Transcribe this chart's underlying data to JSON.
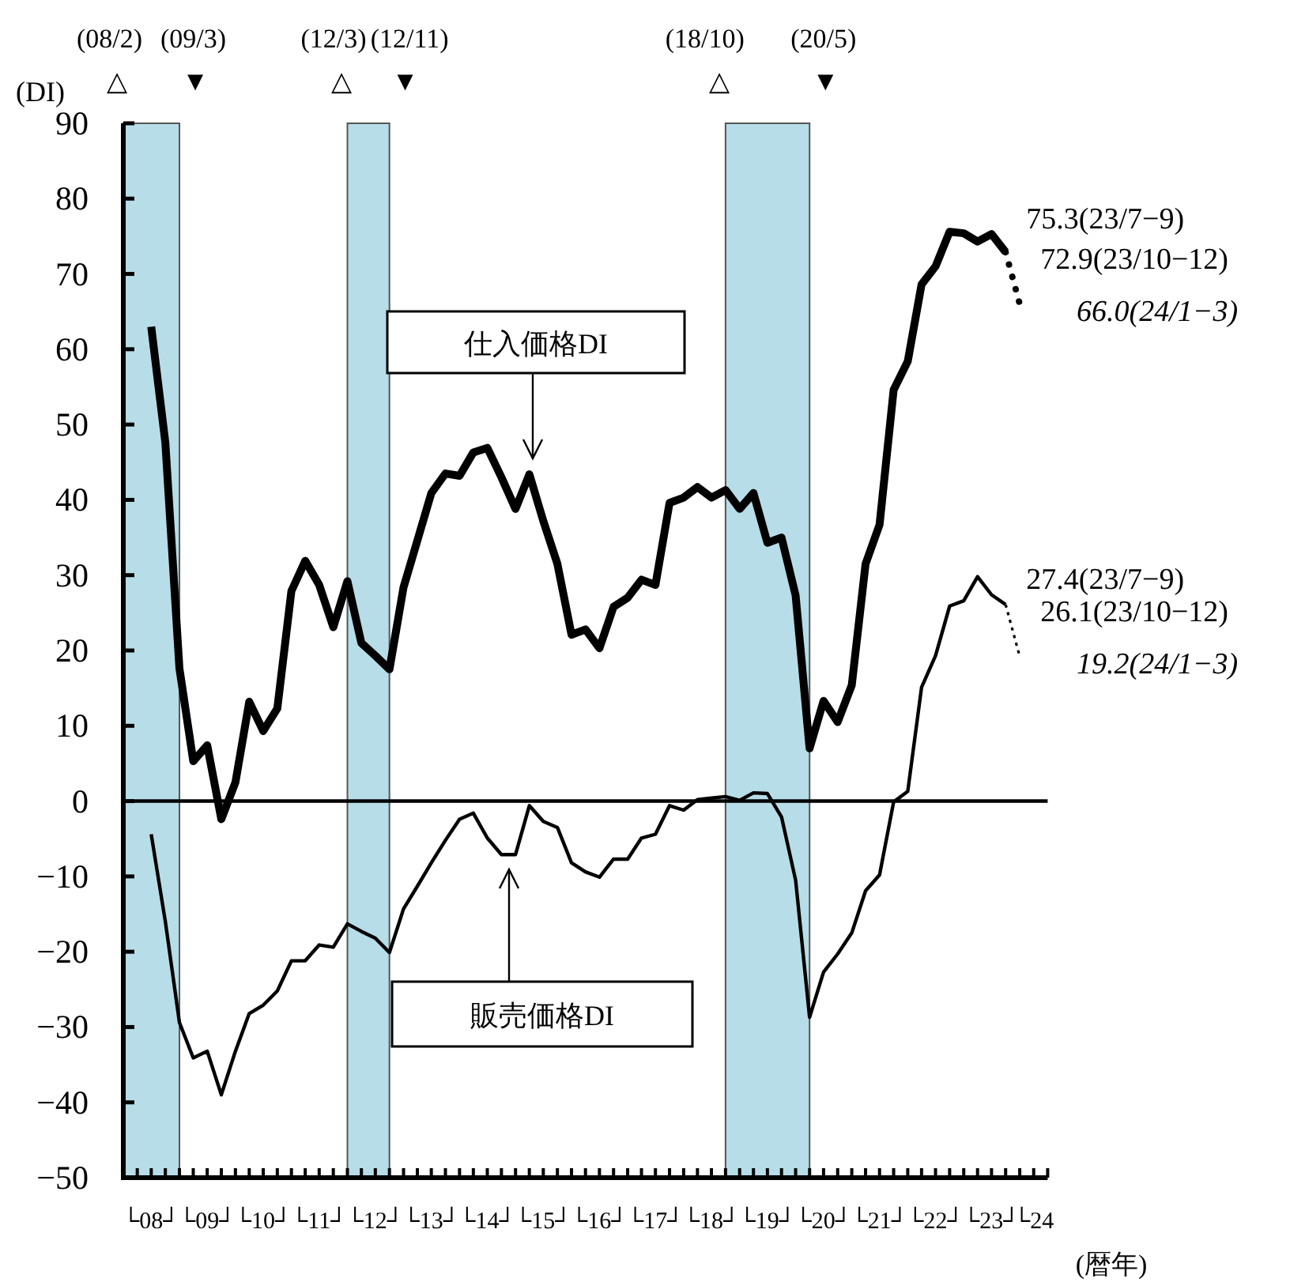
{
  "chart_data": {
    "type": "line",
    "xlabel": "(暦年)",
    "ylabel": "(DI)",
    "xlim": [
      "2008-01",
      "2024-07"
    ],
    "ylim": [
      -50,
      90
    ],
    "yticks": [
      -50,
      -40,
      -30,
      -20,
      -10,
      0,
      10,
      20,
      30,
      40,
      50,
      60,
      70,
      80,
      90
    ],
    "xticks": [
      {
        "value": "2008-01",
        "label": null
      },
      {
        "value": "2008-04",
        "label": null
      },
      {
        "value": "2008-07",
        "label": "└08┘"
      },
      {
        "value": "2008-10",
        "label": null
      },
      {
        "value": "2009-01",
        "label": null
      },
      {
        "value": "2009-04",
        "label": null
      },
      {
        "value": "2009-07",
        "label": "└09┘"
      },
      {
        "value": "2009-10",
        "label": null
      },
      {
        "value": "2010-01",
        "label": null
      },
      {
        "value": "2010-04",
        "label": null
      },
      {
        "value": "2010-07",
        "label": "└10┘"
      },
      {
        "value": "2010-10",
        "label": null
      },
      {
        "value": "2011-01",
        "label": null
      },
      {
        "value": "2011-04",
        "label": null
      },
      {
        "value": "2011-07",
        "label": "└11┘"
      },
      {
        "value": "2011-10",
        "label": null
      },
      {
        "value": "2012-01",
        "label": null
      },
      {
        "value": "2012-04",
        "label": null
      },
      {
        "value": "2012-07",
        "label": "└12┘"
      },
      {
        "value": "2012-10",
        "label": null
      },
      {
        "value": "2013-01",
        "label": null
      },
      {
        "value": "2013-04",
        "label": null
      },
      {
        "value": "2013-07",
        "label": "└13┘"
      },
      {
        "value": "2013-10",
        "label": null
      },
      {
        "value": "2014-01",
        "label": null
      },
      {
        "value": "2014-04",
        "label": null
      },
      {
        "value": "2014-07",
        "label": "└14┘"
      },
      {
        "value": "2014-10",
        "label": null
      },
      {
        "value": "2015-01",
        "label": null
      },
      {
        "value": "2015-04",
        "label": null
      },
      {
        "value": "2015-07",
        "label": "└15┘"
      },
      {
        "value": "2015-10",
        "label": null
      },
      {
        "value": "2016-01",
        "label": null
      },
      {
        "value": "2016-04",
        "label": null
      },
      {
        "value": "2016-07",
        "label": "└16┘"
      },
      {
        "value": "2016-10",
        "label": null
      },
      {
        "value": "2017-01",
        "label": null
      },
      {
        "value": "2017-04",
        "label": null
      },
      {
        "value": "2017-07",
        "label": "└17┘"
      },
      {
        "value": "2017-10",
        "label": null
      },
      {
        "value": "2018-01",
        "label": null
      },
      {
        "value": "2018-04",
        "label": null
      },
      {
        "value": "2018-07",
        "label": "└18┘"
      },
      {
        "value": "2018-10",
        "label": null
      },
      {
        "value": "2019-01",
        "label": null
      },
      {
        "value": "2019-04",
        "label": null
      },
      {
        "value": "2019-07",
        "label": "└19┘"
      },
      {
        "value": "2019-10",
        "label": null
      },
      {
        "value": "2020-01",
        "label": null
      },
      {
        "value": "2020-04",
        "label": null
      },
      {
        "value": "2020-07",
        "label": "└20┘"
      },
      {
        "value": "2020-10",
        "label": null
      },
      {
        "value": "2021-01",
        "label": null
      },
      {
        "value": "2021-04",
        "label": null
      },
      {
        "value": "2021-07",
        "label": "└21┘"
      },
      {
        "value": "2021-10",
        "label": null
      },
      {
        "value": "2022-01",
        "label": null
      },
      {
        "value": "2022-04",
        "label": null
      },
      {
        "value": "2022-07",
        "label": "└22┘"
      },
      {
        "value": "2022-10",
        "label": null
      },
      {
        "value": "2023-01",
        "label": null
      },
      {
        "value": "2023-04",
        "label": null
      },
      {
        "value": "2023-07",
        "label": "└23┘"
      },
      {
        "value": "2023-10",
        "label": null
      },
      {
        "value": "2024-01",
        "label": null
      },
      {
        "value": "2024-04",
        "label": "└24"
      },
      {
        "value": "2024-07",
        "label": null
      }
    ],
    "x": [
      "2008-07",
      "2008-10",
      "2009-01",
      "2009-04",
      "2009-07",
      "2009-10",
      "2010-01",
      "2010-04",
      "2010-07",
      "2010-10",
      "2011-01",
      "2011-04",
      "2011-07",
      "2011-10",
      "2012-01",
      "2012-04",
      "2012-07",
      "2012-10",
      "2013-01",
      "2013-04",
      "2013-07",
      "2013-10",
      "2014-01",
      "2014-04",
      "2014-07",
      "2014-10",
      "2015-01",
      "2015-04",
      "2015-07",
      "2015-10",
      "2016-01",
      "2016-04",
      "2016-07",
      "2016-10",
      "2017-01",
      "2017-04",
      "2017-07",
      "2017-10",
      "2018-01",
      "2018-04",
      "2018-07",
      "2018-10",
      "2019-01",
      "2019-04",
      "2019-07",
      "2019-10",
      "2020-01",
      "2020-04",
      "2020-07",
      "2020-10",
      "2021-01",
      "2021-04",
      "2021-07",
      "2021-10",
      "2022-01",
      "2022-04",
      "2022-07",
      "2022-10",
      "2023-01",
      "2023-04",
      "2023-07",
      "2023-10"
    ],
    "series": [
      {
        "name": "仕入価格DI",
        "color": "#000000",
        "values": [
          63,
          47.6,
          17.6,
          5.3,
          7.4,
          -2.4,
          2.5,
          13.2,
          9.3,
          12.3,
          27.9,
          31.9,
          28.7,
          23.1,
          29.2,
          21,
          19.3,
          17.5,
          28.4,
          34.6,
          40.9,
          43.5,
          43.2,
          46.3,
          46.9,
          43,
          38.8,
          43.4,
          37.2,
          31.5,
          22.1,
          22.8,
          20.3,
          25.8,
          27,
          29.4,
          28.7,
          39.6,
          40.3,
          41.7,
          40.3,
          41.3,
          38.8,
          40.9,
          34.3,
          35,
          27.3,
          7,
          13.3,
          10.5,
          15.4,
          31.5,
          36.7,
          54.6,
          58.4,
          68.6,
          71,
          75.6,
          75.4,
          74.3,
          75.3,
          72.9
        ],
        "value_labels": [
          null,
          null,
          null,
          null,
          null,
          null,
          null,
          null,
          null,
          null,
          null,
          null,
          null,
          null,
          null,
          null,
          null,
          null,
          null,
          null,
          null,
          null,
          null,
          null,
          null,
          null,
          null,
          null,
          null,
          null,
          null,
          null,
          null,
          null,
          null,
          null,
          null,
          null,
          null,
          null,
          null,
          null,
          null,
          null,
          null,
          null,
          null,
          null,
          null,
          null,
          null,
          null,
          null,
          null,
          null,
          null,
          null,
          null,
          null,
          null,
          "75.3(23/7−9)",
          "72.9(23/10−12)"
        ]
      },
      {
        "name": "販売価格DI",
        "color": "#000000",
        "values": [
          -4.4,
          -16,
          -29.4,
          -34.1,
          -33.2,
          -39,
          -33.2,
          -28.2,
          -27.1,
          -25.2,
          -21.2,
          -21.2,
          -19.1,
          -19.4,
          -16.3,
          -17.3,
          -18.2,
          -20.1,
          -14.3,
          -11.3,
          -8.2,
          -5.2,
          -2.4,
          -1.6,
          -4.9,
          -7.1,
          -7.1,
          -0.6,
          -2.7,
          -3.5,
          -8.2,
          -9.4,
          -10.1,
          -7.7,
          -7.7,
          -4.9,
          -4.4,
          -0.6,
          -1.2,
          0.2,
          0.4,
          0.6,
          0.1,
          1.1,
          1.0,
          -2.1,
          -10.5,
          -28.7,
          -22.7,
          -20.3,
          -17.5,
          -11.9,
          -9.8,
          -0.1,
          1.3,
          15.1,
          19.3,
          25.9,
          26.6,
          29.8,
          27.4,
          26.1
        ],
        "value_labels": [
          null,
          null,
          null,
          null,
          null,
          null,
          null,
          null,
          null,
          null,
          null,
          null,
          null,
          null,
          null,
          null,
          null,
          null,
          null,
          null,
          null,
          null,
          null,
          null,
          null,
          null,
          null,
          null,
          null,
          null,
          null,
          null,
          null,
          null,
          null,
          null,
          null,
          null,
          null,
          null,
          null,
          null,
          null,
          null,
          null,
          null,
          null,
          null,
          null,
          null,
          null,
          null,
          null,
          null,
          null,
          null,
          null,
          null,
          null,
          null,
          "27.4(23/7−9)",
          "26.1(23/10−12)"
        ]
      },
      {
        "color": "#000000",
        "line_style": "dotted",
        "x": [
          "2023-10",
          "2024-01"
        ],
        "values": [
          72.9,
          66.0
        ],
        "value_labels": [
          null,
          "66.0(24/1−3)"
        ]
      },
      {
        "color": "#000000",
        "line_style": "dotted",
        "x": [
          "2023-10",
          "2024-01"
        ],
        "values": [
          26.1,
          19.2
        ],
        "value_labels": [
          null,
          "19.2(24/1−3)"
        ]
      }
    ],
    "ref_lines": [
      {
        "axis": "y",
        "value": 0,
        "color": "#000000"
      }
    ],
    "bands": [
      {
        "axis": "x",
        "from": "2008-01",
        "to": "2009-01",
        "color": "#b7dde8"
      },
      {
        "axis": "x",
        "from": "2012-01",
        "to": "2012-10",
        "color": "#b7dde8"
      },
      {
        "axis": "x",
        "from": "2018-10",
        "to": "2020-04",
        "color": "#b7dde8"
      }
    ],
    "annotations": [
      "(08/2)\n△",
      "(09/3)\n▼",
      "(12/3)\n△",
      "(12/11)\n▼",
      "(18/10)\n△",
      "(20/5)\n▼"
    ]
  }
}
